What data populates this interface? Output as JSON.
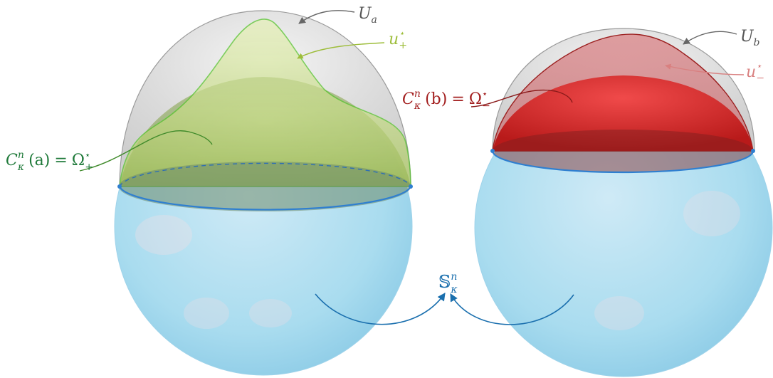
{
  "colors": {
    "sphere": "#a9dcef",
    "sphere_edge": "#7fc3df",
    "equator": "#2f7fd0",
    "cap_green": "#b7d66a",
    "cap_green_edge": "#4fbf2a",
    "cap_red": "#d82a2a",
    "cap_red_edge": "#9b1f1f",
    "dome_gray": "#d8d8d8",
    "label_gray": "#555555",
    "label_green_dark": "#1f7a3a",
    "label_green_light": "#9dbd3a",
    "label_red_dark": "#a31f1f",
    "label_red_light": "#d98080",
    "label_blue": "#1a6fae"
  },
  "labels": {
    "U_a": {
      "main": "U",
      "sub": "a"
    },
    "U_b": {
      "main": "U",
      "sub": "b"
    },
    "u_plus": {
      "main": "u",
      "sup": "⋆",
      "sub": "+"
    },
    "u_minus": {
      "main": "u",
      "sup": "⋆",
      "sub": "−"
    },
    "C_a": {
      "main": "C",
      "sup": "n",
      "sub": "κ",
      "arg": "(a)",
      "eq": "=",
      "omega": "Ω",
      "omega_sup": "⋆",
      "omega_sub": "+"
    },
    "C_b": {
      "main": "C",
      "sup": "n",
      "sub": "κ",
      "arg": "(b)",
      "eq": "=",
      "omega": "Ω",
      "omega_sup": "⋆",
      "omega_sub": "−"
    },
    "S": {
      "main": "𝕊",
      "sup": "n",
      "sub": "κ"
    }
  }
}
